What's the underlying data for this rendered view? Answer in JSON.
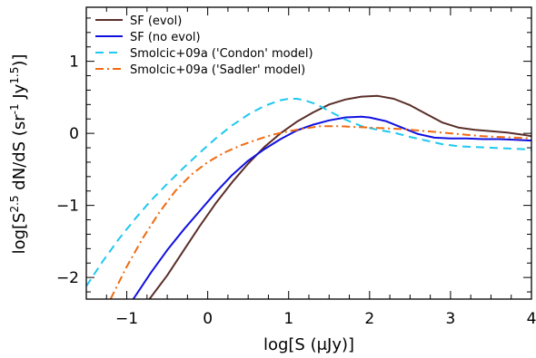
{
  "chart_data": {
    "type": "line",
    "xlabel": "log[S (μJy)]",
    "ylabel": "log[S^2.5 dN/dS (sr^-1 Jy^1.5)]",
    "xlim": [
      -1.5,
      4.0
    ],
    "ylim": [
      -2.3,
      1.75
    ],
    "xticks": [
      -1,
      0,
      1,
      2,
      3,
      4
    ],
    "xtick_labels": [
      "−1",
      "0",
      "1",
      "2",
      "3",
      "4"
    ],
    "yticks": [
      -2,
      -1,
      0,
      1
    ],
    "ytick_labels": [
      "−2",
      "−1",
      "0",
      "1"
    ],
    "grid": false,
    "legend_position": "top-left",
    "series": [
      {
        "name": "SF (evol)",
        "color": "#5a2e28",
        "dash": "solid",
        "x": [
          -0.72,
          -0.5,
          -0.3,
          -0.1,
          0.1,
          0.3,
          0.5,
          0.7,
          0.9,
          1.1,
          1.3,
          1.5,
          1.7,
          1.9,
          2.1,
          2.3,
          2.5,
          2.7,
          2.9,
          3.1,
          3.3,
          3.5,
          3.7,
          3.9,
          4.0
        ],
        "y": [
          -2.3,
          -1.97,
          -1.63,
          -1.29,
          -0.97,
          -0.68,
          -0.42,
          -0.19,
          0.0,
          0.16,
          0.29,
          0.4,
          0.47,
          0.51,
          0.52,
          0.48,
          0.39,
          0.27,
          0.15,
          0.08,
          0.05,
          0.03,
          0.01,
          -0.02,
          -0.04
        ]
      },
      {
        "name": "SF (no evol)",
        "color": "#1010e0",
        "dash": "solid",
        "x": [
          -0.92,
          -0.7,
          -0.5,
          -0.3,
          -0.1,
          0.1,
          0.3,
          0.5,
          0.7,
          0.9,
          1.1,
          1.3,
          1.5,
          1.7,
          1.9,
          2.0,
          2.2,
          2.4,
          2.6,
          2.8,
          3.0,
          3.2,
          3.4,
          3.6,
          3.8,
          4.0
        ],
        "y": [
          -2.3,
          -1.93,
          -1.62,
          -1.34,
          -1.08,
          -0.82,
          -0.58,
          -0.38,
          -0.22,
          -0.08,
          0.04,
          0.12,
          0.18,
          0.22,
          0.23,
          0.22,
          0.17,
          0.08,
          -0.01,
          -0.06,
          -0.07,
          -0.07,
          -0.08,
          -0.08,
          -0.09,
          -0.1
        ]
      },
      {
        "name": "Smolcic+09a ('Condon' model)",
        "color": "#1ec8f0",
        "dash": "dashed",
        "x": [
          -1.5,
          -1.3,
          -1.1,
          -0.9,
          -0.7,
          -0.5,
          -0.3,
          -0.1,
          0.1,
          0.3,
          0.5,
          0.7,
          0.9,
          1.0,
          1.1,
          1.2,
          1.35,
          1.5,
          1.7,
          1.9,
          2.1,
          2.3,
          2.5,
          2.7,
          2.9,
          3.1,
          3.3,
          3.5,
          3.7,
          3.9,
          4.0
        ],
        "y": [
          -2.12,
          -1.78,
          -1.47,
          -1.19,
          -0.93,
          -0.7,
          -0.48,
          -0.27,
          -0.07,
          0.11,
          0.26,
          0.38,
          0.46,
          0.48,
          0.48,
          0.46,
          0.4,
          0.31,
          0.19,
          0.1,
          0.05,
          0.01,
          -0.05,
          -0.1,
          -0.15,
          -0.18,
          -0.19,
          -0.2,
          -0.21,
          -0.22,
          -0.23
        ]
      },
      {
        "name": "Smolcic+09a ('Sadler' model)",
        "color": "#f06a10",
        "dash": "dashdot",
        "x": [
          -1.2,
          -1.0,
          -0.8,
          -0.6,
          -0.4,
          -0.2,
          0.0,
          0.2,
          0.4,
          0.6,
          0.8,
          1.0,
          1.2,
          1.4,
          1.6,
          1.8,
          2.0,
          2.2,
          2.4,
          2.6,
          2.8,
          3.0,
          3.2,
          3.4,
          3.6,
          3.8,
          4.0
        ],
        "y": [
          -2.3,
          -1.85,
          -1.45,
          -1.1,
          -0.8,
          -0.57,
          -0.4,
          -0.27,
          -0.17,
          -0.09,
          -0.02,
          0.03,
          0.07,
          0.1,
          0.1,
          0.09,
          0.08,
          0.07,
          0.06,
          0.04,
          0.02,
          0.0,
          -0.02,
          -0.04,
          -0.05,
          -0.06,
          -0.07
        ]
      }
    ]
  }
}
